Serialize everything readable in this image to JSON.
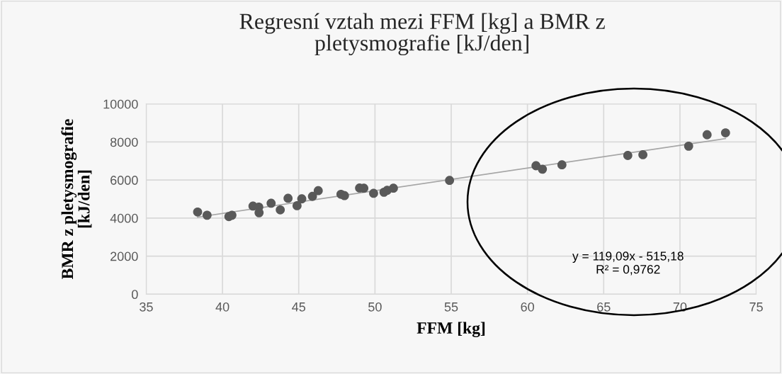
{
  "chart_data": {
    "type": "scatter",
    "title": "Regresní vztah mezi FFM [kg] a BMR z pletysmografie [kJ/den]",
    "xlabel": "FFM [kg]",
    "ylabel": "BMR z pletysmografie [kJ/den]",
    "xlim": [
      35,
      75
    ],
    "xticks": [
      35,
      40,
      45,
      50,
      55,
      60,
      65,
      70,
      75
    ],
    "ylim": [
      0,
      10000
    ],
    "yticks": [
      0,
      2000,
      4000,
      6000,
      8000,
      10000
    ],
    "grid": true,
    "series": [
      {
        "marker": "circle",
        "color": "#595959",
        "x": [
          38.37,
          38.99,
          40.42,
          40.62,
          42.0,
          42.38,
          42.4,
          43.19,
          43.79,
          44.3,
          44.89,
          45.2,
          45.9,
          46.28,
          47.77,
          48.0,
          48.99,
          49.27,
          49.91,
          50.59,
          50.8,
          51.21,
          54.89,
          60.56,
          60.98,
          62.26,
          66.58,
          67.57,
          70.57,
          71.78,
          72.99
        ],
        "values": [
          4320,
          4150,
          4080,
          4150,
          4630,
          4580,
          4280,
          4780,
          4430,
          5040,
          4650,
          5010,
          5140,
          5440,
          5250,
          5180,
          5580,
          5570,
          5300,
          5360,
          5460,
          5570,
          5980,
          6750,
          6570,
          6800,
          7290,
          7330,
          7780,
          8380,
          8480
        ]
      },
      {
        "type": "line",
        "marker": "none",
        "color": "#a6a6a6",
        "x": [
          38.37,
          72.99
        ],
        "values": [
          4050,
          8180
        ]
      }
    ],
    "annotations": [
      "y = 119,09x - 515,18\nR² = 0,9762"
    ]
  }
}
